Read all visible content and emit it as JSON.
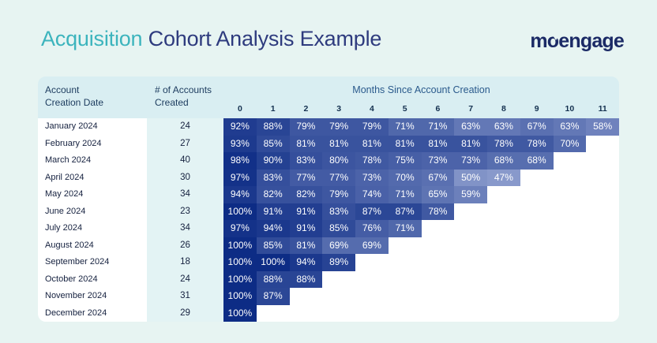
{
  "title": {
    "highlight": "Acquisition",
    "rest": " Cohort Analysis Example"
  },
  "logo": {
    "text": "moengage"
  },
  "table": {
    "headers": {
      "account_line1": "Account",
      "account_line2": "Creation Date",
      "accounts_line1": "# of Accounts",
      "accounts_line2": "Created",
      "months_title": "Months Since Account Creation"
    },
    "month_labels": [
      "0",
      "1",
      "2",
      "3",
      "4",
      "5",
      "6",
      "7",
      "8",
      "9",
      "10",
      "11"
    ]
  },
  "colors": {
    "page_background": "#e7f4f2",
    "header_band": "#d9eef2",
    "accounts_column": "#e3f3f4",
    "title_accent": "#3cb4bd",
    "title_main": "#2e3b7e",
    "logo_navy": "#1b2a66",
    "cell_min": "#8d9dce",
    "cell_max": "#0d2c85"
  },
  "chart_data": {
    "type": "heatmap",
    "title": "Acquisition Cohort Analysis Example",
    "xlabel": "Months Since Account Creation",
    "x": [
      0,
      1,
      2,
      3,
      4,
      5,
      6,
      7,
      8,
      9,
      10,
      11
    ],
    "value_unit": "%",
    "color_domain": [
      45,
      100
    ],
    "rows": [
      {
        "cohort": "January 2024",
        "accounts": 24,
        "retention": [
          92,
          88,
          79,
          79,
          79,
          71,
          71,
          63,
          63,
          67,
          63,
          58
        ]
      },
      {
        "cohort": "February 2024",
        "accounts": 27,
        "retention": [
          93,
          85,
          81,
          81,
          81,
          81,
          81,
          81,
          78,
          78,
          70
        ]
      },
      {
        "cohort": "March 2024",
        "accounts": 40,
        "retention": [
          98,
          90,
          83,
          80,
          78,
          75,
          73,
          73,
          68,
          68
        ]
      },
      {
        "cohort": "April 2024",
        "accounts": 30,
        "retention": [
          97,
          83,
          77,
          77,
          73,
          70,
          67,
          50,
          47
        ]
      },
      {
        "cohort": "May 2024",
        "accounts": 34,
        "retention": [
          94,
          82,
          82,
          79,
          74,
          71,
          65,
          59
        ]
      },
      {
        "cohort": "June 2024",
        "accounts": 23,
        "retention": [
          100,
          91,
          91,
          83,
          87,
          87,
          78
        ]
      },
      {
        "cohort": "July 2024",
        "accounts": 34,
        "retention": [
          97,
          94,
          91,
          85,
          76,
          71
        ]
      },
      {
        "cohort": "August 2024",
        "accounts": 26,
        "retention": [
          100,
          85,
          81,
          69,
          69
        ]
      },
      {
        "cohort": "September 2024",
        "accounts": 18,
        "retention": [
          100,
          100,
          94,
          89
        ]
      },
      {
        "cohort": "October 2024",
        "accounts": 24,
        "retention": [
          100,
          88,
          88
        ]
      },
      {
        "cohort": "November 2024",
        "accounts": 31,
        "retention": [
          100,
          87
        ]
      },
      {
        "cohort": "December 2024",
        "accounts": 29,
        "retention": [
          100
        ]
      }
    ]
  }
}
